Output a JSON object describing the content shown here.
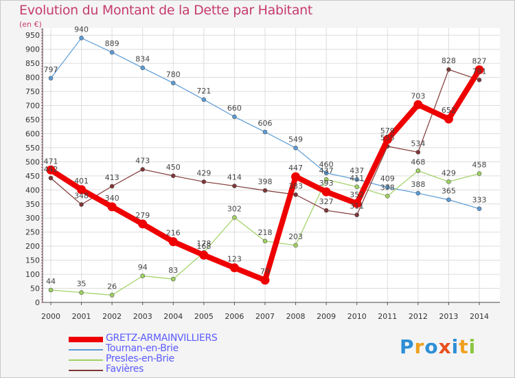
{
  "title": "Evolution du Montant de la Dette par Habitant",
  "unit": "(en €)",
  "logo": {
    "letters": [
      "P",
      "r",
      "o",
      "x",
      "i",
      "t",
      "i"
    ],
    "colors": [
      "#2e8fd6",
      "#f0a020",
      "#2e8fd6",
      "#e85020",
      "#2e8fd6",
      "#f0a020",
      "#8ac640"
    ]
  },
  "chart_data": {
    "type": "line",
    "title": "Evolution du Montant de la Dette par Habitant",
    "ylabel": "(en €)",
    "x": [
      "2000",
      "2001",
      "2002",
      "2003",
      "2004",
      "2005",
      "2006",
      "2007",
      "2008",
      "2009",
      "2010",
      "2011",
      "2012",
      "2013",
      "2014"
    ],
    "ylim": [
      0,
      975
    ],
    "yticks": [
      0,
      50,
      100,
      150,
      200,
      250,
      300,
      350,
      400,
      450,
      500,
      550,
      600,
      650,
      700,
      750,
      800,
      850,
      900,
      950
    ],
    "grid": true,
    "legend_position": "bottom-left",
    "series": [
      {
        "name": "GRETZ-ARMAINVILLIERS",
        "color": "#ee0000",
        "values": [
          471,
          401,
          340,
          279,
          216,
          168,
          123,
          79,
          447,
          393,
          352,
          579,
          703,
          652,
          827
        ],
        "labels": [
          "471",
          "401",
          "340",
          "279",
          "216",
          "168",
          "123",
          "79",
          "447",
          "393",
          "352",
          "579",
          "703",
          "652",
          "827"
        ]
      },
      {
        "name": "Tournan-en-Brie",
        "color": "#5b9bd5",
        "values": [
          797,
          940,
          889,
          834,
          780,
          721,
          660,
          606,
          549,
          460,
          437,
          409,
          388,
          365,
          333
        ],
        "labels": [
          "797",
          "940",
          "889",
          "834",
          "780",
          "721",
          "660",
          "606",
          "549",
          "460",
          "437",
          "409",
          "388",
          "365",
          "333"
        ]
      },
      {
        "name": "Presles-en-Brie",
        "color": "#9ed060",
        "values": [
          44,
          35,
          26,
          94,
          83,
          178,
          302,
          218,
          203,
          437,
          411,
          378,
          468,
          429,
          458
        ],
        "labels": [
          "44",
          "35",
          "26",
          "94",
          "83",
          "178",
          "302",
          "218",
          "203",
          "437",
          "411",
          "378",
          "468",
          "429",
          "458"
        ]
      },
      {
        "name": "Favières",
        "color": "#803535",
        "values": [
          442,
          348,
          413,
          473,
          450,
          429,
          414,
          398,
          383,
          327,
          311,
          555,
          534,
          828,
          791
        ],
        "labels": [
          "442",
          "348",
          "413",
          "473",
          "450",
          "429",
          "414",
          "398",
          "383",
          "327",
          "311",
          "555",
          "534",
          "828",
          "791"
        ]
      }
    ]
  }
}
